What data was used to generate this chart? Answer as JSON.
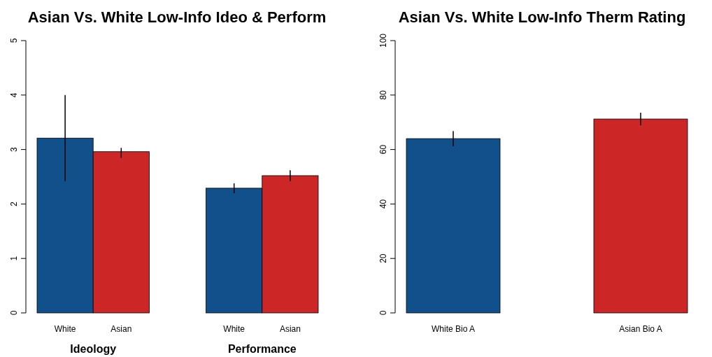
{
  "chart_data": [
    {
      "type": "bar",
      "title": "Asian Vs. White Low-Info Ideo & Perform",
      "categories": [
        "Ideology",
        "Performance"
      ],
      "series": [
        {
          "name": "White",
          "color": "#11508a",
          "values": [
            3.21,
            2.29
          ],
          "errors": [
            [
              2.42,
              4.0
            ],
            [
              2.2,
              2.38
            ]
          ]
        },
        {
          "name": "Asian",
          "color": "#cd2626",
          "values": [
            2.96,
            2.52
          ],
          "errors": [
            [
              2.85,
              3.03
            ],
            [
              2.42,
              2.62
            ]
          ]
        }
      ],
      "ylim": [
        0,
        5
      ],
      "yticks": [
        0,
        1,
        2,
        3,
        4,
        5
      ]
    },
    {
      "type": "bar",
      "title": "Asian Vs. White Low-Info Therm Rating",
      "categories": [
        "White Bio A",
        "Asian Bio A"
      ],
      "values": [
        64.0,
        71.2
      ],
      "colors": [
        "#11508a",
        "#cd2626"
      ],
      "errors": [
        [
          61.2,
          66.8
        ],
        [
          68.9,
          73.5
        ]
      ],
      "ylim": [
        0,
        100
      ],
      "yticks": [
        0,
        20,
        40,
        60,
        80,
        100
      ]
    }
  ]
}
